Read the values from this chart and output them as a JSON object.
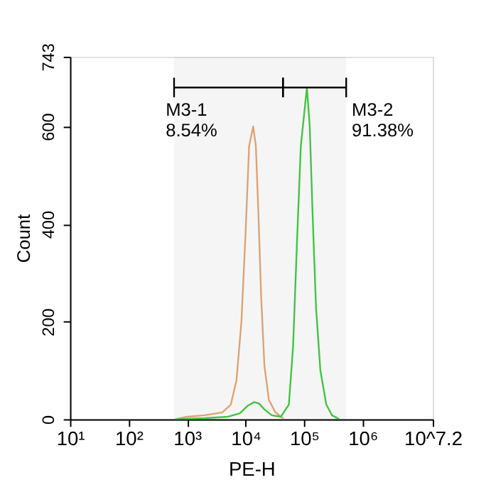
{
  "chart_data": {
    "type": "line",
    "xlabel": "PE-H",
    "ylabel": "Count",
    "log": "x",
    "grid": false,
    "legend": false,
    "marker": "none",
    "line_style": "solid",
    "xlim": [
      10,
      15848932
    ],
    "xticks": [
      {
        "value": 10,
        "label": "10¹"
      },
      {
        "value": 100,
        "label": "10²"
      },
      {
        "value": 1000,
        "label": "10³"
      },
      {
        "value": 10000,
        "label": "10⁴"
      },
      {
        "value": 100000,
        "label": "10⁵"
      },
      {
        "value": 1000000,
        "label": "10⁶"
      },
      {
        "value": 15848932,
        "label": "10^7.2"
      }
    ],
    "ylim": [
      0,
      743
    ],
    "yticks": [
      0,
      200,
      400,
      600,
      743
    ],
    "series": [
      {
        "color": "#e8a878",
        "x": [
          631,
          1000,
          2000,
          4000,
          5600,
          7000,
          8500,
          10000,
          11500,
          13500,
          15000,
          16500,
          18500,
          21000,
          25000,
          32000,
          45000
        ],
        "values": [
          0,
          5,
          8,
          14,
          30,
          80,
          200,
          380,
          560,
          600,
          560,
          430,
          250,
          110,
          40,
          15,
          0
        ]
      },
      {
        "color": "#44cc44",
        "x": [
          631,
          2000,
          5000,
          8000,
          11000,
          14000,
          17000,
          21000,
          28000,
          40000,
          55000,
          65000,
          75000,
          88000,
          112000,
          125000,
          140000,
          160000,
          190000,
          240000,
          300000,
          400000
        ],
        "values": [
          0,
          2,
          5,
          12,
          28,
          35,
          32,
          20,
          8,
          5,
          30,
          150,
          350,
          560,
          680,
          600,
          420,
          230,
          100,
          30,
          8,
          0
        ]
      }
    ],
    "bands": [
      {
        "axis": "x",
        "from": 600,
        "to": 43600,
        "label": "M3-1\n8.54%"
      },
      {
        "axis": "x",
        "from": 43600,
        "to": 525000,
        "label": "M3-2\n91.38%"
      }
    ]
  }
}
